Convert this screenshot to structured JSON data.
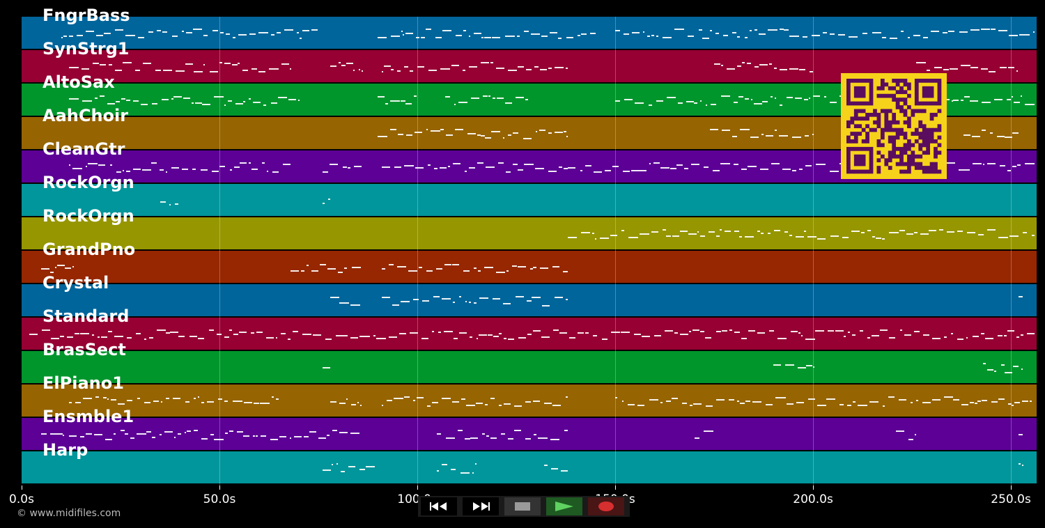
{
  "app": {
    "copyright": "© www.midifiles.com"
  },
  "colors": {
    "background": "#000000",
    "track_palette": [
      "#00659b",
      "#960033",
      "#00962c",
      "#966400",
      "#5c0096",
      "#00969b",
      "#969600",
      "#962700"
    ]
  },
  "tracks": [
    {
      "name": "FngrBass",
      "color": "#00659b"
    },
    {
      "name": "SynStrg1",
      "color": "#960033"
    },
    {
      "name": "AltoSax",
      "color": "#00962c"
    },
    {
      "name": "AahChoir",
      "color": "#966400"
    },
    {
      "name": "CleanGtr",
      "color": "#5c0096"
    },
    {
      "name": "RockOrgn",
      "color": "#00969b"
    },
    {
      "name": "RockOrgn",
      "color": "#969600"
    },
    {
      "name": "GrandPno",
      "color": "#962700"
    },
    {
      "name": "Crystal",
      "color": "#00659b"
    },
    {
      "name": "Standard",
      "color": "#960033"
    },
    {
      "name": "BrasSect",
      "color": "#00962c"
    },
    {
      "name": "ElPiano1",
      "color": "#966400"
    },
    {
      "name": "Ensmble1",
      "color": "#5c0096"
    },
    {
      "name": "Harp",
      "color": "#00969b"
    }
  ],
  "timeline": {
    "max_seconds": 256.5,
    "ticks": [
      {
        "value": 0,
        "label": "0.0s"
      },
      {
        "value": 50,
        "label": "50.0s"
      },
      {
        "value": 100,
        "label": "100.0s"
      },
      {
        "value": 150,
        "label": "150.0s"
      },
      {
        "value": 200,
        "label": "200.0s"
      },
      {
        "value": 250,
        "label": "250.0s"
      }
    ]
  },
  "controls": [
    {
      "name": "rewind-button",
      "icon": "rewind-icon"
    },
    {
      "name": "fast-forward-button",
      "icon": "fast-forward-icon"
    },
    {
      "name": "stop-button",
      "icon": "stop-icon"
    },
    {
      "name": "play-button",
      "icon": "play-icon"
    },
    {
      "name": "record-button",
      "icon": "record-icon"
    }
  ],
  "qr_code": {
    "icon": "qr-code-icon"
  }
}
